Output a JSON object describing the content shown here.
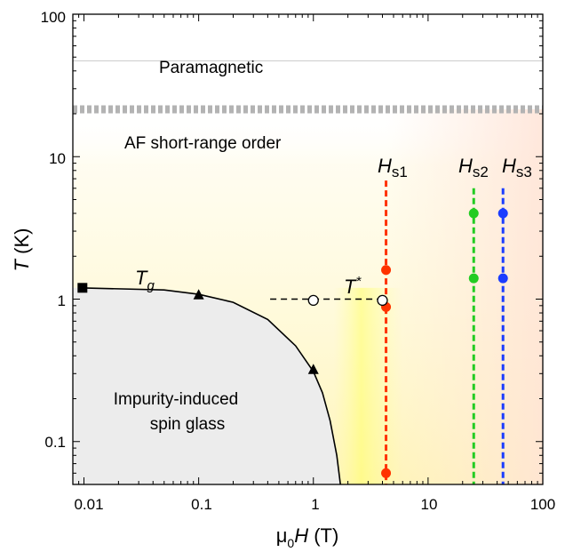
{
  "chart_data": {
    "type": "scatter",
    "x_scale": "log",
    "y_scale": "log",
    "xlim": [
      0.008,
      100
    ],
    "ylim": [
      0.05,
      100
    ],
    "x_ticks": [
      "0.01",
      "0.1",
      "1",
      "10",
      "100"
    ],
    "y_ticks": [
      "0.1",
      "1",
      "10",
      "100"
    ],
    "xlabel": {
      "base": "μ",
      "sub": "0",
      "italic": "H",
      "rest": " (T)"
    },
    "ylabel": {
      "italic": "T",
      "rest": " (K)"
    },
    "grid": false,
    "legend": "none",
    "regions": {
      "paramagnetic": "Paramagnetic",
      "af_short_range": "AF short-range order",
      "spin_glass_line1": "Impurity-induced",
      "spin_glass_line2": "spin glass"
    },
    "boundaries": {
      "paramagnetic_line_T": 47,
      "af_crossover_T": 21.5
    },
    "labels": {
      "tg": {
        "main": "T",
        "sub": "g"
      },
      "tstar": {
        "main": "T",
        "sup": "*"
      },
      "hs1": {
        "main": "H",
        "sub": "s1"
      },
      "hs2": {
        "main": "H",
        "sub": "s2"
      },
      "hs3": {
        "main": "H",
        "sub": "s3"
      }
    },
    "tg_curve": {
      "name": "T_g",
      "x": [
        0.009,
        0.05,
        0.1,
        0.2,
        0.4,
        0.7,
        1.0,
        1.2,
        1.4,
        1.6,
        1.72
      ],
      "y": [
        1.2,
        1.16,
        1.08,
        0.95,
        0.72,
        0.47,
        0.31,
        0.22,
        0.14,
        0.08,
        0.05
      ],
      "color": "#000000"
    },
    "tg_square_points": {
      "x": [
        0.0097
      ],
      "y": [
        1.2
      ],
      "color": "#000000"
    },
    "tg_triangle_points": {
      "x": [
        0.1,
        1.0
      ],
      "y": [
        1.07,
        0.32
      ],
      "color": "#000000"
    },
    "tstar_line": {
      "x": [
        0.42,
        4.1
      ],
      "y": [
        1.0,
        1.0
      ],
      "color": "#000000"
    },
    "tstar_points": {
      "x": [
        1.0,
        4.0
      ],
      "y": [
        0.98,
        0.98
      ],
      "fill": "#ffffff",
      "stroke": "#000000"
    },
    "critical_fields": [
      {
        "id": "hs1",
        "x": 4.3,
        "y_top": 6.8,
        "color": "#ff3300",
        "points_y": [
          1.6,
          0.88,
          0.06
        ]
      },
      {
        "id": "hs2",
        "x": 25,
        "y_top": 6.0,
        "color": "#22cc22",
        "points_y": [
          4.0,
          1.4
        ]
      },
      {
        "id": "hs3",
        "x": 45,
        "y_top": 6.0,
        "color": "#1a3cff",
        "points_y": [
          4.0,
          1.4
        ]
      }
    ],
    "colors": {
      "spin_glass_fill": "#ececec",
      "background_tint": "#fff8cc",
      "crossover_band": "#b3b3b3"
    }
  }
}
